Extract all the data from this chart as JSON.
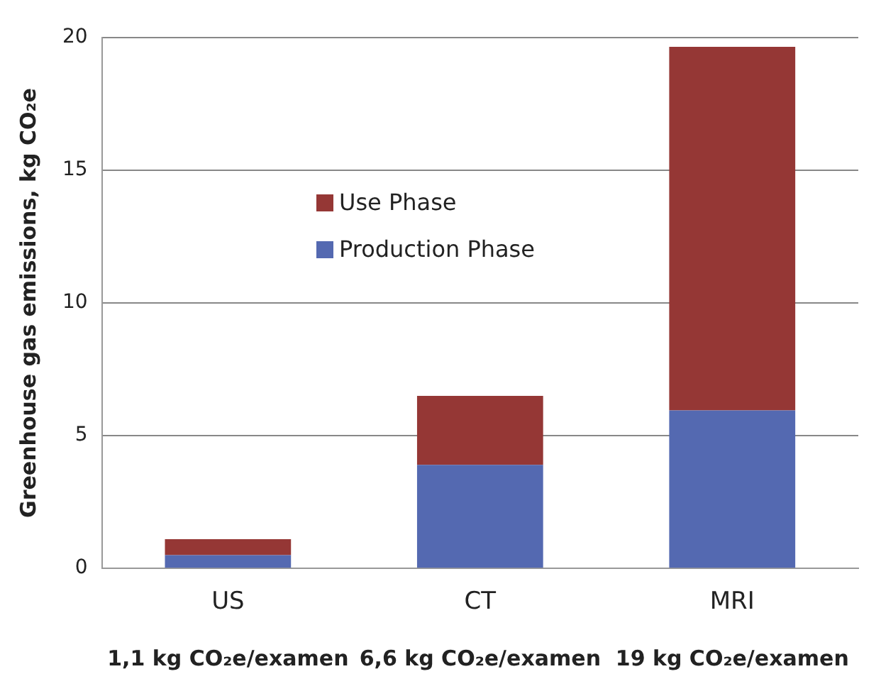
{
  "chart_data": {
    "type": "bar",
    "stacked": true,
    "categories": [
      "US",
      "CT",
      "MRI"
    ],
    "series": [
      {
        "name": "Production Phase",
        "color": "#5469b1",
        "values": [
          0.5,
          3.9,
          5.95
        ]
      },
      {
        "name": "Use Phase",
        "color": "#953735",
        "values": [
          0.6,
          2.6,
          13.7
        ]
      }
    ],
    "ylabel": "Greenhouse gas emissions, kg CO₂e",
    "ylim": [
      0,
      20
    ],
    "yticks": [
      0,
      5,
      10,
      15,
      20
    ],
    "grid": "y",
    "legend": "top left",
    "annotations": [
      "1,1 kg CO₂e/examen",
      "6,6 kg CO₂e/examen",
      "19 kg CO₂e/examen"
    ]
  }
}
